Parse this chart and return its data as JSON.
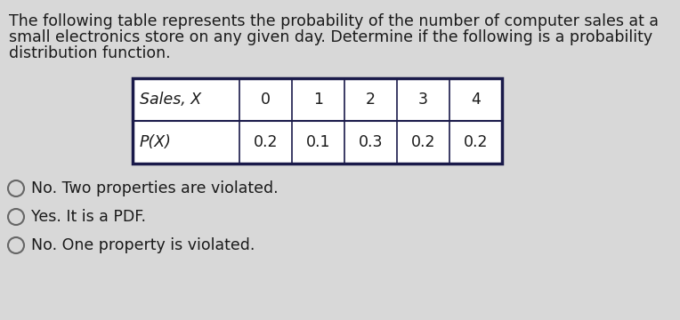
{
  "bg_color": "#d8d8d8",
  "paragraph_text_lines": [
    "The following table represents the probability of the number of computer sales at a",
    "small electronics store on any given day. Determine if the following is a probability",
    "distribution function."
  ],
  "table_headers": [
    "Sales, X",
    "0",
    "1",
    "2",
    "3",
    "4"
  ],
  "table_row_label": "P(X)",
  "table_row_values": [
    "0.2",
    "0.1",
    "0.3",
    "0.2",
    "0.2"
  ],
  "options": [
    "No. Two properties are violated.",
    "Yes. It is a PDF.",
    "No. One property is violated."
  ],
  "text_color": "#1a1a1a",
  "para_fontsize": 12.5,
  "option_fontsize": 12.5,
  "table_fontsize": 12.5,
  "table_italic_label": true
}
